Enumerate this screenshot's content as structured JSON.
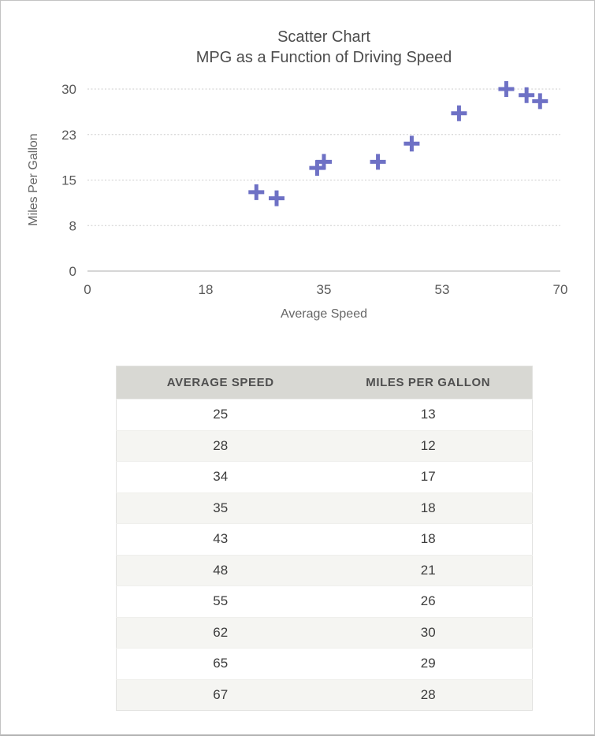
{
  "page": {
    "background": "#ffffff",
    "border_color": "#c3c3c3"
  },
  "chart_data": {
    "type": "scatter",
    "title": "Scatter Chart",
    "subtitle": "MPG as a Function of Driving Speed",
    "xlabel": "Average Speed",
    "ylabel": "Miles Per Gallon",
    "xlim": [
      0,
      70
    ],
    "ylim": [
      0,
      30
    ],
    "x_ticks": [
      {
        "value": 0,
        "label": "0"
      },
      {
        "value": 17.5,
        "label": "18"
      },
      {
        "value": 35,
        "label": "35"
      },
      {
        "value": 52.5,
        "label": "53"
      },
      {
        "value": 70,
        "label": "70"
      }
    ],
    "y_ticks": [
      {
        "value": 0,
        "label": "0"
      },
      {
        "value": 7.5,
        "label": "8"
      },
      {
        "value": 15,
        "label": "15"
      },
      {
        "value": 22.5,
        "label": "23"
      },
      {
        "value": 30,
        "label": "30"
      }
    ],
    "grid": "horizontal-dotted",
    "legend": "none",
    "marker": "plus",
    "marker_color": "#6e71c5",
    "points": [
      [
        25,
        13
      ],
      [
        28,
        12
      ],
      [
        34,
        17
      ],
      [
        35,
        18
      ],
      [
        43,
        18
      ],
      [
        48,
        21
      ],
      [
        55,
        26
      ],
      [
        62,
        30
      ],
      [
        65,
        29
      ],
      [
        67,
        28
      ]
    ]
  },
  "table": {
    "headers": [
      "AVERAGE SPEED",
      "MILES PER GALLON"
    ],
    "header_bg": "#d8d8d3",
    "alt_row_bg": "#f5f5f2",
    "rows": [
      [
        "25",
        "13"
      ],
      [
        "28",
        "12"
      ],
      [
        "34",
        "17"
      ],
      [
        "35",
        "18"
      ],
      [
        "43",
        "18"
      ],
      [
        "48",
        "21"
      ],
      [
        "55",
        "26"
      ],
      [
        "62",
        "30"
      ],
      [
        "65",
        "29"
      ],
      [
        "67",
        "28"
      ]
    ]
  }
}
